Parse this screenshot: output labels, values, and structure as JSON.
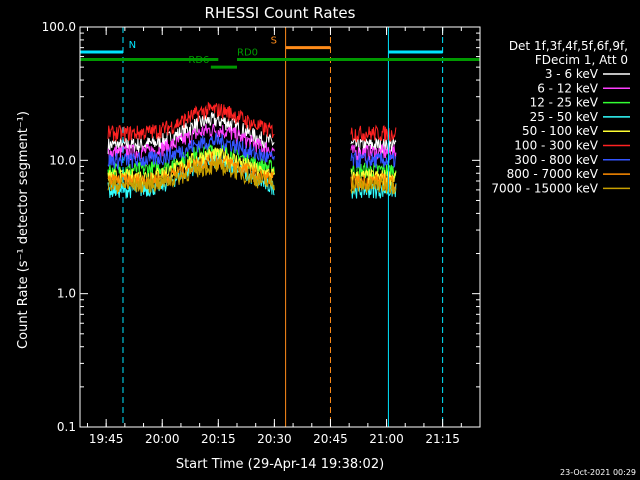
{
  "chart_data": {
    "type": "line",
    "title": "RHESSI Count Rates",
    "xlabel": "Start Time (29-Apr-14 19:38:02)",
    "ylabel": "Count Rate (s⁻¹ detector segment⁻¹)",
    "y_scale": "log",
    "ylim": [
      0.1,
      100
    ],
    "yticks": [
      "0.1",
      "1.0",
      "10.0",
      "100.0"
    ],
    "x_unit": "minutes since 19:38:02",
    "xlim": [
      0,
      107
    ],
    "xticks": [
      {
        "label": "19:45",
        "value": 7
      },
      {
        "label": "20:00",
        "value": 22
      },
      {
        "label": "20:15",
        "value": 37
      },
      {
        "label": "20:30",
        "value": 52
      },
      {
        "label": "20:45",
        "value": 67
      },
      {
        "label": "21:00",
        "value": 82
      },
      {
        "label": "21:15",
        "value": 97
      }
    ],
    "legend_header": [
      "Det 1f,3f,4f,5f,6f,9f,",
      "FDecim 1, Att 0"
    ],
    "legend_position": "right",
    "grid": false,
    "series": [
      {
        "name": "3 - 6 keV",
        "color": "#ffffff",
        "base": 13.0,
        "peak": 20.0
      },
      {
        "name": "6 - 12 keV",
        "color": "#ff40ff",
        "base": 11.5,
        "peak": 17.0
      },
      {
        "name": "12 - 25 keV",
        "color": "#33ff33",
        "base": 8.5,
        "peak": 12.0
      },
      {
        "name": "25 - 50 keV",
        "color": "#33ffff",
        "base": 6.0,
        "peak": 10.0
      },
      {
        "name": "50 - 100 keV",
        "color": "#ffff33",
        "base": 7.5,
        "peak": 11.0
      },
      {
        "name": "100 - 300 keV",
        "color": "#ff2222",
        "base": 16.0,
        "peak": 24.0
      },
      {
        "name": "300 - 800 keV",
        "color": "#3355ff",
        "base": 10.0,
        "peak": 14.0
      },
      {
        "name": "800 - 7000 keV",
        "color": "#ff8c00",
        "base": 7.0,
        "peak": 10.0
      },
      {
        "name": "7000 - 15000 keV",
        "color": "#c8a000",
        "base": 6.5,
        "peak": 9.0
      }
    ],
    "data_intervals": [
      {
        "start": 7.5,
        "end": 52.0
      },
      {
        "start": 72.5,
        "end": 84.5
      }
    ],
    "flare_peak_time": 36,
    "annotations": [
      {
        "label": "N",
        "color": "#00e5ff",
        "y": 65,
        "segments": [
          [
            0,
            11.5
          ],
          [
            82.5,
            97
          ]
        ],
        "vlines": [
          0,
          11.5,
          82.5,
          97
        ]
      },
      {
        "label": "S",
        "color": "#ff8c1a",
        "y": 70,
        "segments": [
          [
            55,
            67
          ]
        ],
        "vlines": [
          55,
          67
        ]
      },
      {
        "label": "RD0",
        "color": "#009900",
        "y": 57,
        "segments": [
          [
            0,
            37
          ],
          [
            42,
            107
          ]
        ]
      },
      {
        "label": "RD6",
        "color": "#009900",
        "y": 50,
        "segments": [
          [
            35,
            42
          ]
        ]
      }
    ],
    "timestamp": "23-Oct-2021 00:29"
  }
}
